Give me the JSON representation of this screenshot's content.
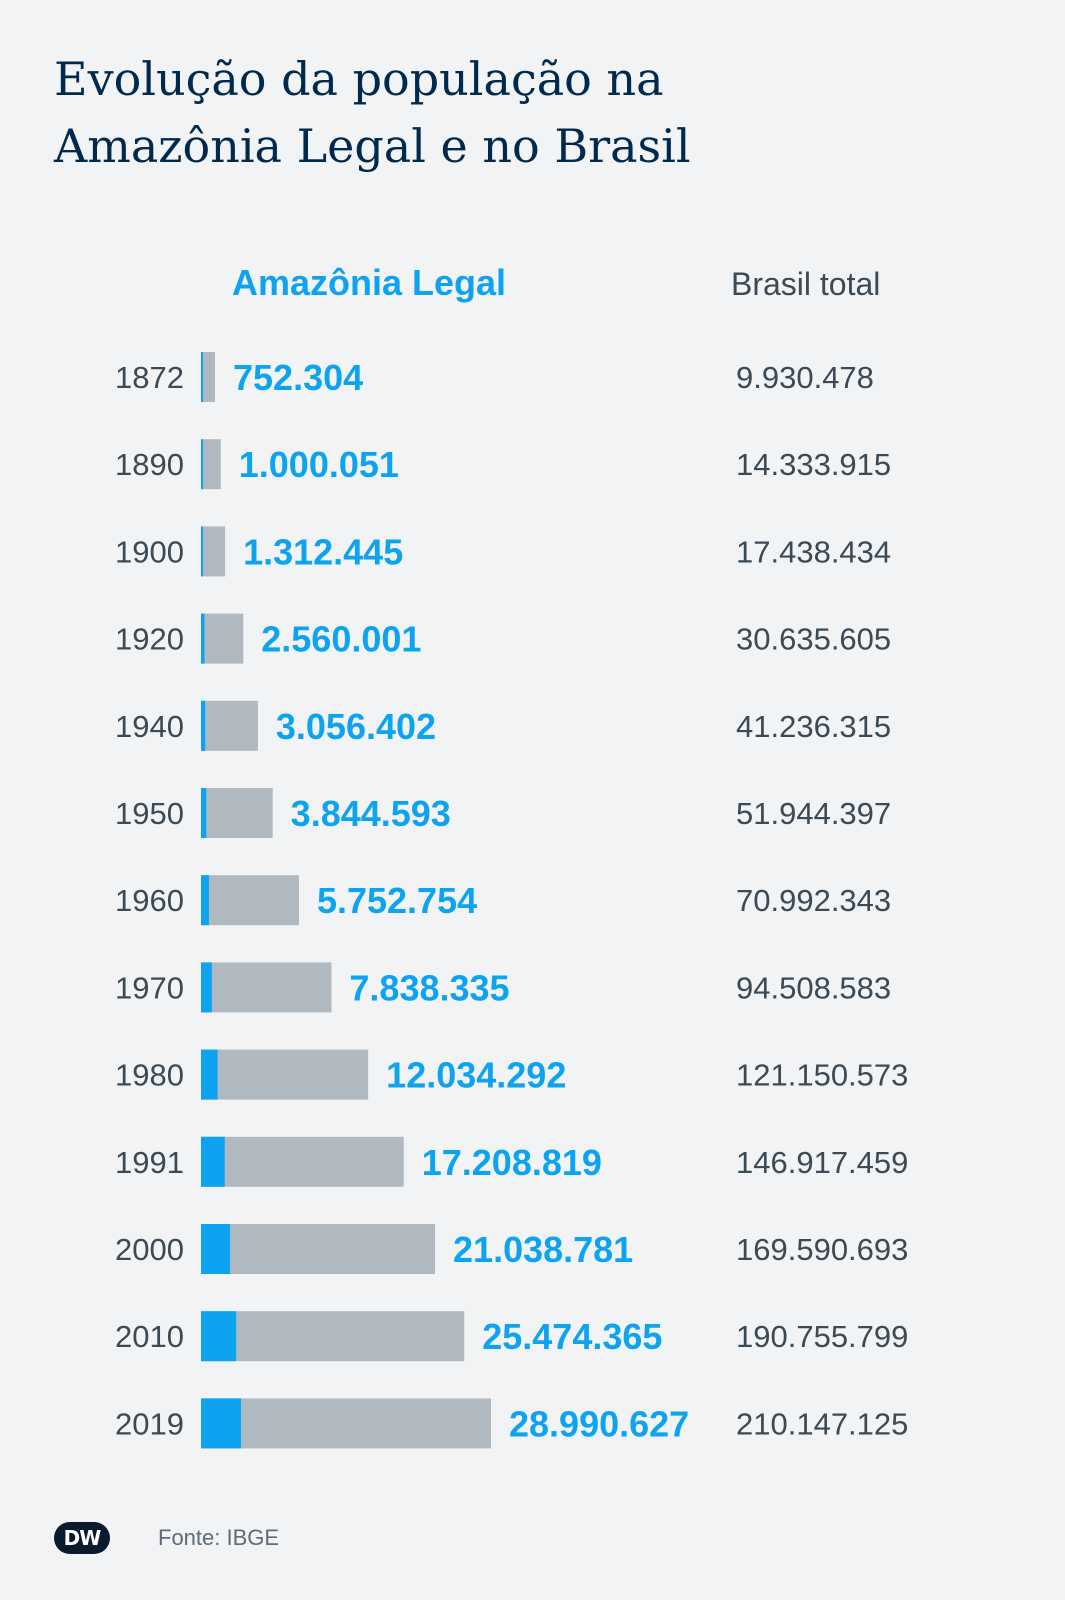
{
  "title_line1": "Evolução da população na",
  "title_line2": "Amazônia Legal e no Brasil",
  "header": {
    "amazon": "Amazônia Legal",
    "brasil": "Brasil total"
  },
  "source": "Fonte: IBGE",
  "logo_text": "DW",
  "colors": {
    "amazon": "#0ea3f0",
    "brasil": "#b0b9c0",
    "text": "#3c4a55",
    "title": "#002a4d",
    "background": "#f1f3f5"
  },
  "chart_data": {
    "type": "bar",
    "categories": [
      "1872",
      "1890",
      "1900",
      "1920",
      "1940",
      "1950",
      "1960",
      "1970",
      "1980",
      "1991",
      "2000",
      "2010",
      "2019"
    ],
    "series": [
      {
        "name": "Amazônia Legal",
        "values": [
          752304,
          1000051,
          1312445,
          2560001,
          3056402,
          3844593,
          5752754,
          7838335,
          12034292,
          17208819,
          21038781,
          25474365,
          28990627
        ]
      },
      {
        "name": "Brasil total",
        "values": [
          9930478,
          14333915,
          17438434,
          30635605,
          41236315,
          51944397,
          70992343,
          94508583,
          121150573,
          146917459,
          169590693,
          190755799,
          210147125
        ]
      }
    ],
    "value_labels_amazon": [
      "752.304",
      "1.000.051",
      "1.312.445",
      "2.560.001",
      "3.056.402",
      "3.844.593",
      "5.752.754",
      "7.838.335",
      "12.034.292",
      "17.208.819",
      "21.038.781",
      "25.474.365",
      "28.990.627"
    ],
    "value_labels_brasil": [
      "9.930.478",
      "14.333.915",
      "17.438.434",
      "30.635.605",
      "41.236.315",
      "51.944.397",
      "70.992.343",
      "94.508.583",
      "121.150.573",
      "146.917.459",
      "169.590.693",
      "190.755.799",
      "210.147.125"
    ],
    "orientation": "horizontal",
    "grid": false
  }
}
